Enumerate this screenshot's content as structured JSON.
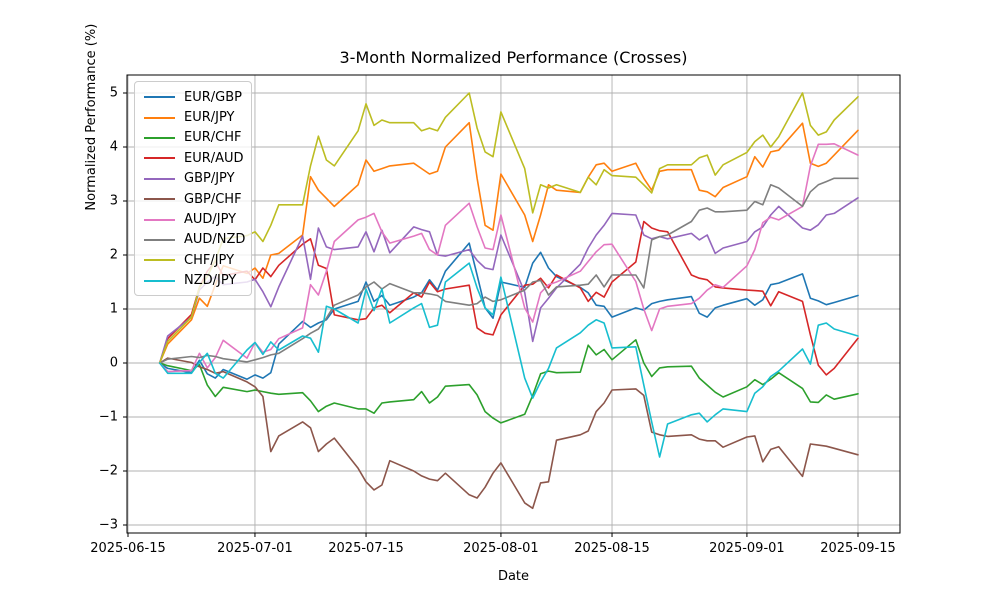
{
  "chart_data": {
    "type": "line",
    "title": "3-Month Normalized Performance (Crosses)",
    "xlabel": "Date",
    "ylabel": "Normalized Performance (%)",
    "grid": true,
    "legend_position": "upper left",
    "xlim": [
      "2025-06-15",
      "2025-09-20"
    ],
    "ylim": [
      -3.15,
      5.33
    ],
    "x_tick_labels": [
      "2025-06-15",
      "2025-07-01",
      "2025-07-15",
      "2025-08-01",
      "2025-08-15",
      "2025-09-01",
      "2025-09-15"
    ],
    "y_tick_values": [
      -3,
      -2,
      -1,
      0,
      1,
      2,
      3,
      4,
      5
    ],
    "y_tick_labels": [
      "−3",
      "−2",
      "−1",
      "0",
      "1",
      "2",
      "3",
      "4",
      "5"
    ],
    "grid_color": "#b0b0b0",
    "spine_color": "#000000",
    "dates": [
      "2025-06-19",
      "2025-06-20",
      "2025-06-23",
      "2025-06-24",
      "2025-06-25",
      "2025-06-26",
      "2025-06-27",
      "2025-06-30",
      "2025-07-01",
      "2025-07-02",
      "2025-07-03",
      "2025-07-04",
      "2025-07-07",
      "2025-07-08",
      "2025-07-09",
      "2025-07-10",
      "2025-07-11",
      "2025-07-14",
      "2025-07-15",
      "2025-07-16",
      "2025-07-17",
      "2025-07-18",
      "2025-07-21",
      "2025-07-22",
      "2025-07-23",
      "2025-07-24",
      "2025-07-25",
      "2025-07-28",
      "2025-07-29",
      "2025-07-30",
      "2025-07-31",
      "2025-08-01",
      "2025-08-04",
      "2025-08-05",
      "2025-08-06",
      "2025-08-07",
      "2025-08-08",
      "2025-08-11",
      "2025-08-12",
      "2025-08-13",
      "2025-08-14",
      "2025-08-15",
      "2025-08-18",
      "2025-08-19",
      "2025-08-20",
      "2025-08-21",
      "2025-08-22",
      "2025-08-25",
      "2025-08-26",
      "2025-08-27",
      "2025-08-28",
      "2025-08-29",
      "2025-09-01",
      "2025-09-02",
      "2025-09-03",
      "2025-09-04",
      "2025-09-05",
      "2025-09-08",
      "2025-09-09",
      "2025-09-10",
      "2025-09-11",
      "2025-09-12",
      "2025-09-15"
    ],
    "series": [
      {
        "name": "EUR/GBP",
        "color": "#1f77b4",
        "values": [
          0.0,
          -0.1,
          -0.18,
          0.05,
          -0.2,
          -0.28,
          -0.12,
          -0.3,
          -0.22,
          -0.28,
          -0.18,
          0.35,
          0.77,
          0.66,
          0.74,
          0.8,
          1.0,
          1.14,
          1.5,
          1.14,
          1.25,
          1.07,
          1.22,
          1.3,
          1.54,
          1.35,
          1.7,
          2.22,
          1.63,
          1.02,
          0.83,
          1.5,
          1.4,
          1.85,
          2.05,
          1.76,
          1.6,
          1.4,
          1.3,
          1.07,
          1.05,
          0.85,
          1.02,
          0.98,
          1.1,
          1.14,
          1.17,
          1.23,
          0.92,
          0.85,
          1.02,
          1.07,
          1.19,
          1.07,
          1.17,
          1.45,
          1.48,
          1.65,
          1.2,
          1.15,
          1.08,
          1.12,
          1.25
        ]
      },
      {
        "name": "EUR/JPY",
        "color": "#ff7f0e",
        "values": [
          0.0,
          0.35,
          0.8,
          1.2,
          1.05,
          1.45,
          1.8,
          1.66,
          1.76,
          1.57,
          2.0,
          2.03,
          2.37,
          3.45,
          3.2,
          3.05,
          2.9,
          3.3,
          3.76,
          3.55,
          3.6,
          3.65,
          3.7,
          3.6,
          3.5,
          3.55,
          4.0,
          4.45,
          3.42,
          2.55,
          2.46,
          3.5,
          2.74,
          2.25,
          2.74,
          3.3,
          3.2,
          3.16,
          3.44,
          3.67,
          3.7,
          3.55,
          3.7,
          3.42,
          3.2,
          3.55,
          3.58,
          3.58,
          3.2,
          3.17,
          3.08,
          3.25,
          3.45,
          3.82,
          3.63,
          3.91,
          3.94,
          4.44,
          3.7,
          3.64,
          3.7,
          3.85,
          4.31
        ]
      },
      {
        "name": "EUR/CHF",
        "color": "#2ca02c",
        "values": [
          0.0,
          -0.05,
          -0.14,
          -0.03,
          -0.41,
          -0.62,
          -0.45,
          -0.53,
          -0.5,
          -0.53,
          -0.56,
          -0.58,
          -0.55,
          -0.7,
          -0.9,
          -0.8,
          -0.74,
          -0.85,
          -0.85,
          -0.93,
          -0.74,
          -0.72,
          -0.68,
          -0.53,
          -0.74,
          -0.63,
          -0.43,
          -0.4,
          -0.59,
          -0.9,
          -1.02,
          -1.11,
          -0.95,
          -0.6,
          -0.2,
          -0.15,
          -0.18,
          -0.17,
          0.33,
          0.15,
          0.25,
          0.06,
          0.43,
          0.0,
          -0.25,
          -0.09,
          -0.07,
          -0.06,
          -0.28,
          -0.41,
          -0.54,
          -0.63,
          -0.44,
          -0.31,
          -0.4,
          -0.3,
          -0.18,
          -0.47,
          -0.72,
          -0.73,
          -0.59,
          -0.67,
          -0.57
        ]
      },
      {
        "name": "EUR/AUD",
        "color": "#d62728",
        "values": [
          0.0,
          0.45,
          0.9,
          1.4,
          1.7,
          1.88,
          1.62,
          1.7,
          1.54,
          1.76,
          1.6,
          1.81,
          2.2,
          2.3,
          1.81,
          1.75,
          0.89,
          0.8,
          0.82,
          1.02,
          1.07,
          0.93,
          1.3,
          1.22,
          1.5,
          1.32,
          1.37,
          1.44,
          0.65,
          0.55,
          0.52,
          0.89,
          1.44,
          1.46,
          1.57,
          1.39,
          1.63,
          1.39,
          1.14,
          1.31,
          1.22,
          1.5,
          1.87,
          2.62,
          2.5,
          2.45,
          2.43,
          1.63,
          1.57,
          1.54,
          1.41,
          1.39,
          1.35,
          1.34,
          1.33,
          1.06,
          1.32,
          1.14,
          0.52,
          -0.04,
          -0.22,
          -0.1,
          0.46
        ]
      },
      {
        "name": "GBP/JPY",
        "color": "#9467bd",
        "values": [
          0.0,
          0.5,
          0.85,
          1.35,
          1.5,
          1.6,
          1.45,
          1.5,
          1.55,
          1.32,
          1.04,
          1.41,
          2.35,
          1.55,
          2.5,
          2.15,
          2.1,
          2.15,
          2.43,
          2.06,
          2.46,
          2.04,
          2.52,
          2.47,
          2.43,
          2.0,
          1.98,
          2.1,
          1.9,
          1.76,
          1.73,
          2.37,
          1.31,
          0.4,
          1.02,
          1.2,
          1.39,
          1.83,
          2.13,
          2.37,
          2.55,
          2.77,
          2.74,
          2.37,
          2.3,
          2.34,
          2.3,
          2.4,
          2.28,
          2.37,
          2.03,
          2.13,
          2.25,
          2.43,
          2.52,
          2.74,
          2.9,
          2.5,
          2.46,
          2.56,
          2.74,
          2.77,
          3.06
        ]
      },
      {
        "name": "GBP/CHF",
        "color": "#8c564b",
        "values": [
          0.0,
          0.09,
          0.01,
          -0.07,
          -0.12,
          -0.19,
          -0.16,
          -0.35,
          -0.44,
          -0.62,
          -1.64,
          -1.35,
          -1.09,
          -1.2,
          -1.64,
          -1.5,
          -1.39,
          -1.95,
          -2.2,
          -2.35,
          -2.26,
          -1.81,
          -2.0,
          -2.09,
          -2.15,
          -2.18,
          -2.04,
          -2.44,
          -2.5,
          -2.3,
          -2.04,
          -1.85,
          -2.59,
          -2.69,
          -2.22,
          -2.2,
          -1.43,
          -1.33,
          -1.26,
          -0.9,
          -0.74,
          -0.5,
          -0.48,
          -0.6,
          -1.28,
          -1.33,
          -1.36,
          -1.33,
          -1.41,
          -1.44,
          -1.44,
          -1.56,
          -1.37,
          -1.35,
          -1.83,
          -1.6,
          -1.55,
          -2.1,
          -1.5,
          -1.52,
          -1.54,
          -1.58,
          -1.7
        ]
      },
      {
        "name": "AUD/JPY",
        "color": "#e377c2",
        "values": [
          0.0,
          -0.16,
          -0.14,
          0.18,
          -0.09,
          0.1,
          0.42,
          0.09,
          0.38,
          0.2,
          0.25,
          0.45,
          0.65,
          1.45,
          1.26,
          1.7,
          2.25,
          2.65,
          2.7,
          2.77,
          2.43,
          2.22,
          2.35,
          2.4,
          2.1,
          2.0,
          2.55,
          2.96,
          2.52,
          2.13,
          2.1,
          2.74,
          1.02,
          0.76,
          1.3,
          1.45,
          1.5,
          1.7,
          1.88,
          2.06,
          2.19,
          2.2,
          1.51,
          1.0,
          0.6,
          1.0,
          1.05,
          1.1,
          1.2,
          1.35,
          1.45,
          1.4,
          1.8,
          2.1,
          2.6,
          2.7,
          2.65,
          2.9,
          3.65,
          4.05,
          4.05,
          4.06,
          3.85
        ]
      },
      {
        "name": "AUD/NZD",
        "color": "#7f7f7f",
        "values": [
          0.0,
          0.07,
          0.12,
          0.1,
          0.14,
          0.12,
          0.08,
          0.02,
          0.06,
          0.1,
          0.15,
          0.18,
          0.45,
          0.55,
          0.63,
          0.83,
          1.07,
          1.26,
          1.41,
          1.5,
          1.37,
          1.47,
          1.3,
          1.3,
          1.28,
          1.25,
          1.14,
          1.07,
          1.1,
          1.22,
          1.14,
          1.17,
          1.35,
          1.5,
          1.53,
          1.26,
          1.41,
          1.44,
          1.46,
          1.63,
          1.41,
          1.63,
          1.63,
          1.39,
          2.28,
          2.34,
          2.37,
          2.62,
          2.83,
          2.87,
          2.8,
          2.8,
          2.83,
          2.99,
          2.93,
          3.3,
          3.24,
          2.9,
          3.17,
          3.3,
          3.36,
          3.42,
          3.42
        ]
      },
      {
        "name": "CHF/JPY",
        "color": "#bcbd22",
        "values": [
          0.0,
          0.4,
          0.85,
          1.4,
          1.6,
          1.9,
          2.3,
          2.36,
          2.43,
          2.25,
          2.55,
          2.93,
          2.93,
          3.65,
          4.2,
          3.76,
          3.65,
          4.3,
          4.8,
          4.4,
          4.5,
          4.45,
          4.45,
          4.3,
          4.35,
          4.3,
          4.55,
          5.0,
          4.35,
          3.91,
          3.82,
          4.65,
          3.6,
          2.78,
          3.3,
          3.24,
          3.3,
          3.16,
          3.44,
          3.3,
          3.58,
          3.47,
          3.44,
          3.3,
          3.15,
          3.6,
          3.67,
          3.67,
          3.8,
          3.85,
          3.48,
          3.67,
          3.9,
          4.1,
          4.22,
          4.0,
          4.19,
          5.0,
          4.4,
          4.22,
          4.28,
          4.5,
          4.93
        ]
      },
      {
        "name": "NZD/JPY",
        "color": "#17becf",
        "values": [
          0.0,
          -0.19,
          -0.19,
          0.01,
          0.18,
          -0.19,
          -0.28,
          0.24,
          0.38,
          0.16,
          0.39,
          0.24,
          0.5,
          0.46,
          0.2,
          1.05,
          1.0,
          0.74,
          1.37,
          0.97,
          1.37,
          0.74,
          1.02,
          1.1,
          0.66,
          0.7,
          1.5,
          1.85,
          1.39,
          1.02,
          0.89,
          1.59,
          -0.28,
          -0.65,
          -0.35,
          -0.1,
          0.28,
          0.56,
          0.7,
          0.8,
          0.74,
          0.28,
          0.3,
          -0.41,
          -1.09,
          -1.74,
          -1.13,
          -0.96,
          -0.93,
          -1.09,
          -0.96,
          -0.85,
          -0.9,
          -0.56,
          -0.44,
          -0.25,
          -0.15,
          0.26,
          -0.02,
          0.7,
          0.74,
          0.63,
          0.5
        ]
      }
    ]
  }
}
